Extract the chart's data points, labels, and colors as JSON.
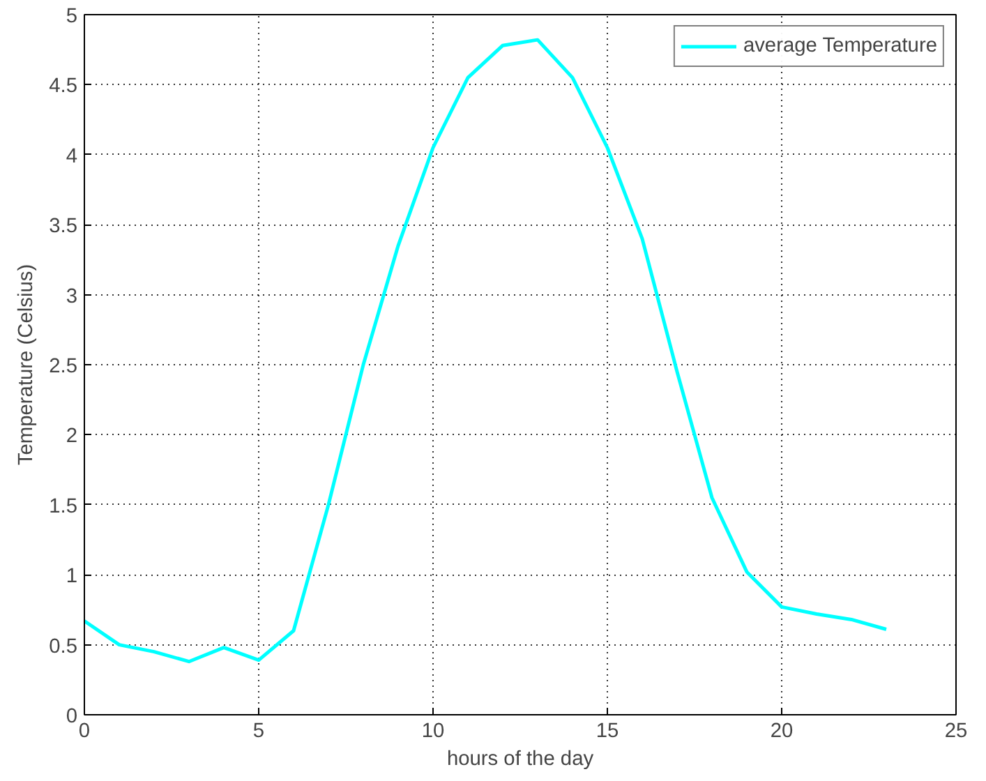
{
  "chart_data": {
    "type": "line",
    "xlabel": "hours of the day",
    "ylabel": "Temperature (Celsius)",
    "x": [
      0,
      1,
      2,
      3,
      4,
      5,
      6,
      7,
      8,
      9,
      10,
      11,
      12,
      13,
      14,
      15,
      16,
      17,
      18,
      19,
      20,
      21,
      22,
      23
    ],
    "series": [
      {
        "name": "average Temperature",
        "color": "#00ffff",
        "values": [
          0.67,
          0.5,
          0.45,
          0.38,
          0.48,
          0.39,
          0.6,
          1.5,
          2.5,
          3.35,
          4.05,
          4.55,
          4.78,
          4.82,
          4.55,
          4.05,
          3.4,
          2.45,
          1.55,
          1.02,
          0.77,
          0.72,
          0.68,
          0.61
        ]
      }
    ],
    "xlim": [
      0,
      25
    ],
    "ylim": [
      0,
      5
    ],
    "xticks": [
      0,
      5,
      10,
      15,
      20,
      25
    ],
    "yticks": [
      0,
      0.5,
      1,
      1.5,
      2,
      2.5,
      3,
      3.5,
      4,
      4.5,
      5
    ],
    "grid": true,
    "legend": "top right",
    "marker": "none",
    "line_style": "solid"
  }
}
